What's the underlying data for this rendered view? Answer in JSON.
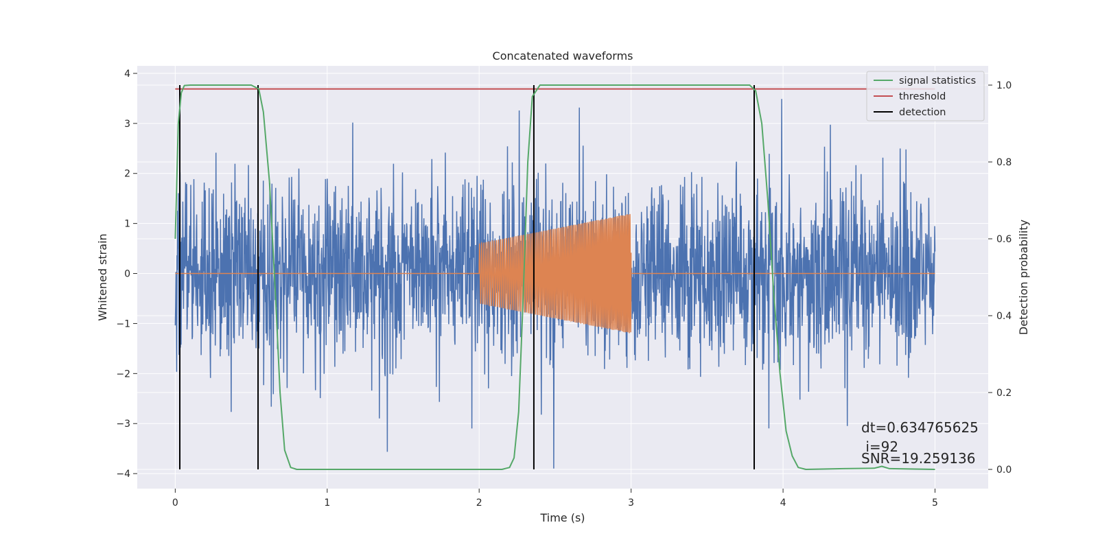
{
  "chart_data": {
    "type": "line",
    "title": "Concatenated waveforms",
    "xlabel": "Time (s)",
    "ylabel": "Whitened strain",
    "y2label": "Detection probability",
    "xlim": [
      -0.25,
      5.35
    ],
    "ylim": [
      -4.3,
      4.15
    ],
    "y2lim": [
      -0.05,
      1.05
    ],
    "xticks": [
      0,
      1,
      2,
      3,
      4,
      5
    ],
    "yticks": [
      -4,
      -3,
      -2,
      -1,
      0,
      1,
      2,
      3,
      4
    ],
    "y2ticks": [
      0.0,
      0.2,
      0.4,
      0.6,
      0.8,
      1.0
    ],
    "xtick_labels": [
      "0",
      "1",
      "2",
      "3",
      "4",
      "5"
    ],
    "ytick_labels": [
      "−4",
      "−3",
      "−2",
      "−1",
      "0",
      "1",
      "2",
      "3",
      "4"
    ],
    "y2tick_labels": [
      "0.0",
      "0.2",
      "0.4",
      "0.6",
      "0.8",
      "1.0"
    ],
    "grid": true,
    "legend_position": "top-right",
    "colors": {
      "background": "#eaeaf2",
      "grid": "#ffffff",
      "strain": "#4c72b0",
      "injection": "#dd8452",
      "signal_statistics": "#55a868",
      "threshold": "#c44e52",
      "detection": "#000000"
    },
    "series": [
      {
        "key": "strain",
        "axis": "left",
        "x_range": [
          0,
          5
        ],
        "noise_sigma": 0.9,
        "min": -3.9,
        "max": 3.7
      },
      {
        "key": "injection",
        "axis": "left",
        "x_range": [
          0,
          5
        ],
        "chirp_start": 2.0,
        "chirp_end": 3.0,
        "amplitude_start": 0.6,
        "amplitude_end": 1.2
      },
      {
        "name": "signal statistics",
        "axis": "right",
        "x": [
          0.0,
          0.02,
          0.04,
          0.06,
          0.1,
          0.5,
          0.55,
          0.58,
          0.62,
          0.66,
          0.69,
          0.72,
          0.76,
          0.8,
          2.15,
          2.2,
          2.23,
          2.26,
          2.29,
          2.32,
          2.35,
          2.4,
          3.78,
          3.82,
          3.86,
          3.9,
          3.94,
          3.98,
          4.02,
          4.06,
          4.1,
          4.15,
          4.4,
          4.6,
          4.65,
          4.7,
          5.0
        ],
        "y": [
          0.6,
          0.9,
          0.98,
          0.999,
          1.0,
          1.0,
          0.99,
          0.93,
          0.75,
          0.45,
          0.2,
          0.05,
          0.005,
          0.0,
          0.0,
          0.005,
          0.03,
          0.15,
          0.45,
          0.8,
          0.97,
          1.0,
          1.0,
          0.985,
          0.9,
          0.7,
          0.45,
          0.25,
          0.1,
          0.035,
          0.005,
          0.0,
          0.002,
          0.003,
          0.008,
          0.002,
          0.0
        ]
      },
      {
        "name": "threshold",
        "axis": "right",
        "x": [
          0,
          5
        ],
        "y": [
          0.99,
          0.99
        ]
      },
      {
        "name": "detection",
        "axis": "right",
        "x": [
          0.03,
          0.545,
          2.36,
          3.81
        ],
        "y_range": [
          0,
          1
        ]
      }
    ],
    "annotations": [
      "dt=0.634765625",
      " i=92",
      "SNR=19.259136"
    ]
  }
}
